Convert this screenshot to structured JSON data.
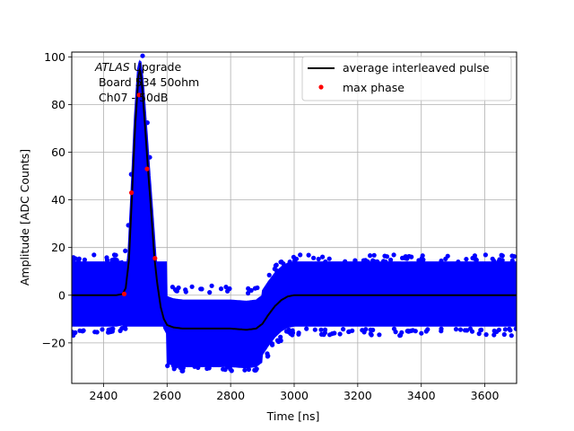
{
  "chart_data": {
    "type": "scatter",
    "title": "",
    "xlabel": "Time [ns]",
    "ylabel": "Amplitude [ADC Counts]",
    "xlim": [
      2300,
      3700
    ],
    "ylim": [
      -37,
      102
    ],
    "xticks": [
      2400,
      2600,
      2800,
      3000,
      3200,
      3400,
      3600
    ],
    "yticks": [
      -20,
      0,
      20,
      40,
      60,
      80,
      100
    ],
    "grid": true,
    "legend_position": "top-right",
    "annotation": {
      "line1_italic": "ATLAS",
      "line1_rest": " Upgrade",
      "line2": " Board 534 50ohm",
      "line3": " Ch07 - 50dB"
    },
    "colors": {
      "samples": "#0000ff",
      "average": "#000000",
      "max_phase": "#ff0000",
      "grid": "#b0b0b0"
    },
    "series": [
      {
        "name": "average interleaved pulse",
        "style": "line",
        "x": [
          2300,
          2440,
          2460,
          2470,
          2480,
          2490,
          2500,
          2510,
          2515,
          2520,
          2530,
          2540,
          2550,
          2560,
          2570,
          2580,
          2590,
          2600,
          2620,
          2650,
          2700,
          2750,
          2800,
          2850,
          2880,
          2900,
          2920,
          2940,
          2960,
          2980,
          3000,
          3050,
          3100,
          3200,
          3300,
          3400,
          3500,
          3600,
          3700
        ],
        "y": [
          0,
          0,
          0.5,
          3,
          15,
          43,
          72,
          92,
          95,
          90,
          72,
          53,
          35,
          16,
          4,
          -5,
          -10,
          -12.5,
          -13.5,
          -14,
          -14,
          -14,
          -14,
          -14.5,
          -14,
          -12,
          -8,
          -4.5,
          -2,
          -0.5,
          0,
          0,
          0,
          0,
          0,
          0,
          0,
          0,
          0
        ]
      },
      {
        "name": "max phase",
        "style": "points",
        "x": [
          2465,
          2488,
          2512,
          2537,
          2562
        ],
        "y": [
          0.5,
          43,
          84,
          53,
          15.5
        ]
      },
      {
        "name": "",
        "style": "noise-band",
        "description_values": {
          "baseline_spread": [
            -13,
            14
          ],
          "undershoot_spread": [
            -30,
            -1
          ]
        }
      }
    ]
  }
}
